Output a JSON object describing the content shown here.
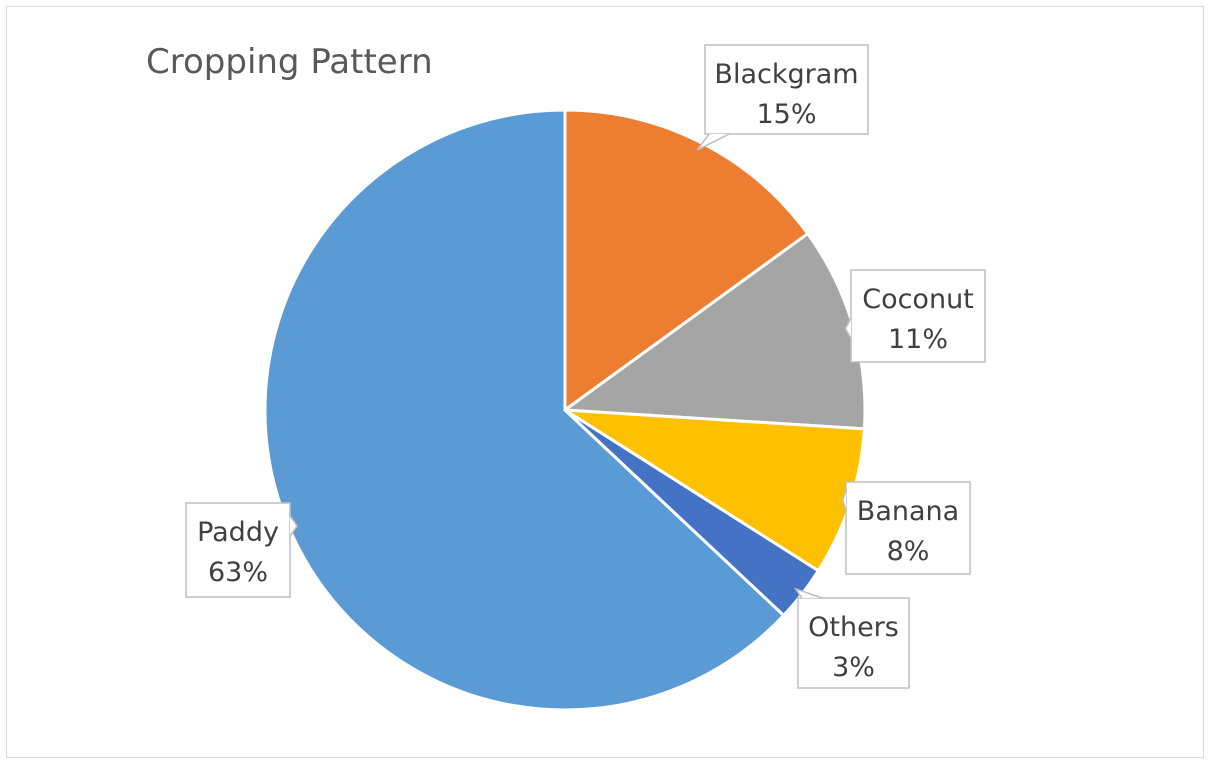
{
  "chart_data": {
    "type": "pie",
    "title": "Cropping Pattern",
    "slices": [
      {
        "name": "Paddy",
        "value": 63,
        "label_pct": "63%",
        "color": "#5b9bd5"
      },
      {
        "name": "Blackgram",
        "value": 15,
        "label_pct": "15%",
        "color": "#ed7d31"
      },
      {
        "name": "Coconut",
        "value": 11,
        "label_pct": "11%",
        "color": "#a5a5a5"
      },
      {
        "name": "Banana",
        "value": 8,
        "label_pct": "8%",
        "color": "#ffc000"
      },
      {
        "name": "Others",
        "value": 3,
        "label_pct": "3%",
        "color": "#4472c4"
      }
    ],
    "legend": "none",
    "data_labels": "callouts"
  }
}
